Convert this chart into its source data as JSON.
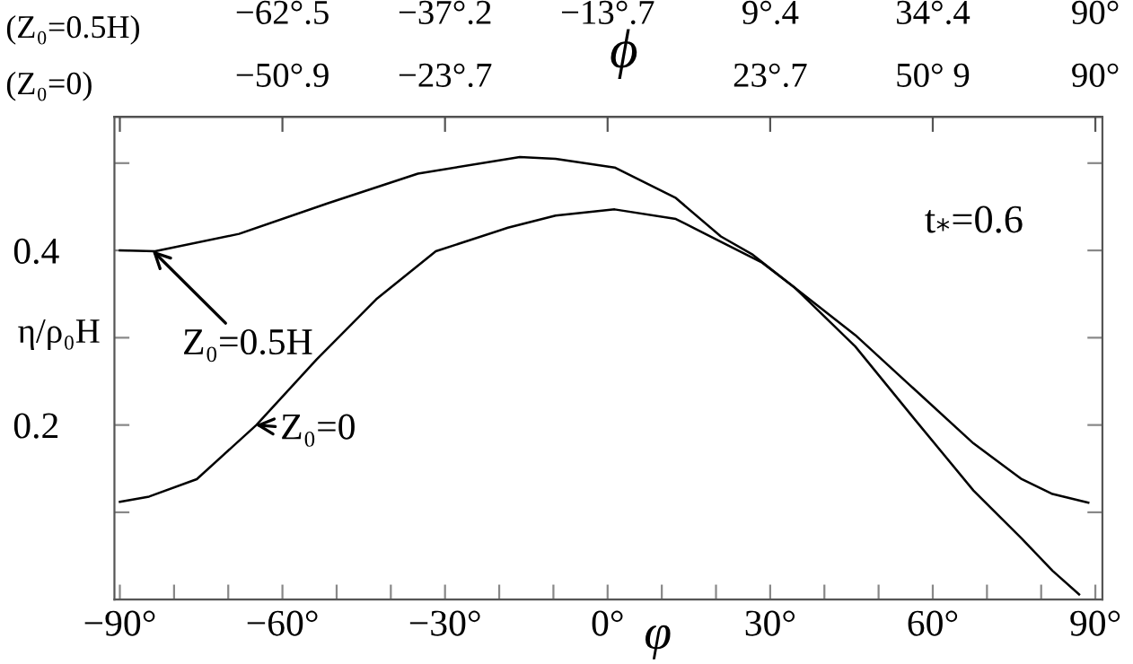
{
  "chart_data": {
    "type": "line",
    "xlabel": "φ",
    "ylabel": "η/ρ₀H",
    "xlim": [
      -91,
      91.3
    ],
    "ylim": [
      0,
      0.553
    ],
    "xticks": [
      {
        "value": -90,
        "label": "−90°"
      },
      {
        "value": -80,
        "label": null
      },
      {
        "value": -70,
        "label": null
      },
      {
        "value": -60,
        "label": "−60°"
      },
      {
        "value": -50,
        "label": null
      },
      {
        "value": -40,
        "label": null
      },
      {
        "value": -30,
        "label": "−30°"
      },
      {
        "value": -20,
        "label": null
      },
      {
        "value": -10,
        "label": null
      },
      {
        "value": 0,
        "label": "0°"
      },
      {
        "value": 10,
        "label": null
      },
      {
        "value": 20,
        "label": null
      },
      {
        "value": 30,
        "label": "30°"
      },
      {
        "value": 40,
        "label": null
      },
      {
        "value": 50,
        "label": null
      },
      {
        "value": 60,
        "label": "60°"
      },
      {
        "value": 70,
        "label": null
      },
      {
        "value": 80,
        "label": null
      },
      {
        "value": 90,
        "label": "90°"
      }
    ],
    "yticks": [
      {
        "value": 0.1,
        "label": null
      },
      0.2,
      {
        "value": 0.3,
        "label": null
      },
      0.4,
      {
        "value": 0.5,
        "label": null
      }
    ],
    "series": [
      {
        "color": "#000000",
        "x": [
          -90,
          -83.5,
          -68,
          -51.6,
          -35,
          -16.2,
          -9.6,
          1.3,
          12.6,
          20.9,
          26.8,
          34.4,
          45.7,
          56.6,
          67.5,
          76.4,
          82.1,
          88.7
        ],
        "values": [
          0.4,
          0.399,
          0.419,
          0.454,
          0.488,
          0.507,
          0.505,
          0.495,
          0.46,
          0.416,
          0.395,
          0.358,
          0.303,
          0.241,
          0.179,
          0.138,
          0.121,
          0.111
        ]
      },
      {
        "color": "#000000",
        "x": [
          -90,
          -84.6,
          -75.8,
          -64.8,
          -53.7,
          -42.7,
          -31.7,
          -18.4,
          -9.6,
          1.3,
          12.6,
          21.2,
          28.5,
          34.4,
          45.7,
          56.6,
          67.5,
          76.4,
          82.1,
          87.0
        ],
        "values": [
          0.112,
          0.118,
          0.138,
          0.2,
          0.275,
          0.344,
          0.399,
          0.426,
          0.44,
          0.447,
          0.436,
          0.409,
          0.386,
          0.358,
          0.29,
          0.207,
          0.125,
          0.07,
          0.033,
          0.006
        ]
      }
    ],
    "annotations": [
      {
        "text": "Z₀=0.5H",
        "x": -84,
        "y": 0.4
      },
      {
        "text": "Z₀=0",
        "x": -65,
        "y": 0.2
      },
      "t$_{*}$=0.6",
      "(Z₀=0.5H)",
      "(Z₀=0)",
      "ϕ",
      "−62°.5",
      "−37°.2",
      "−13°.7",
      "9°.4",
      "34°.4",
      "90°",
      "−50°.9",
      "−23°.7",
      "23°.7",
      "50° 9",
      "90°"
    ]
  }
}
